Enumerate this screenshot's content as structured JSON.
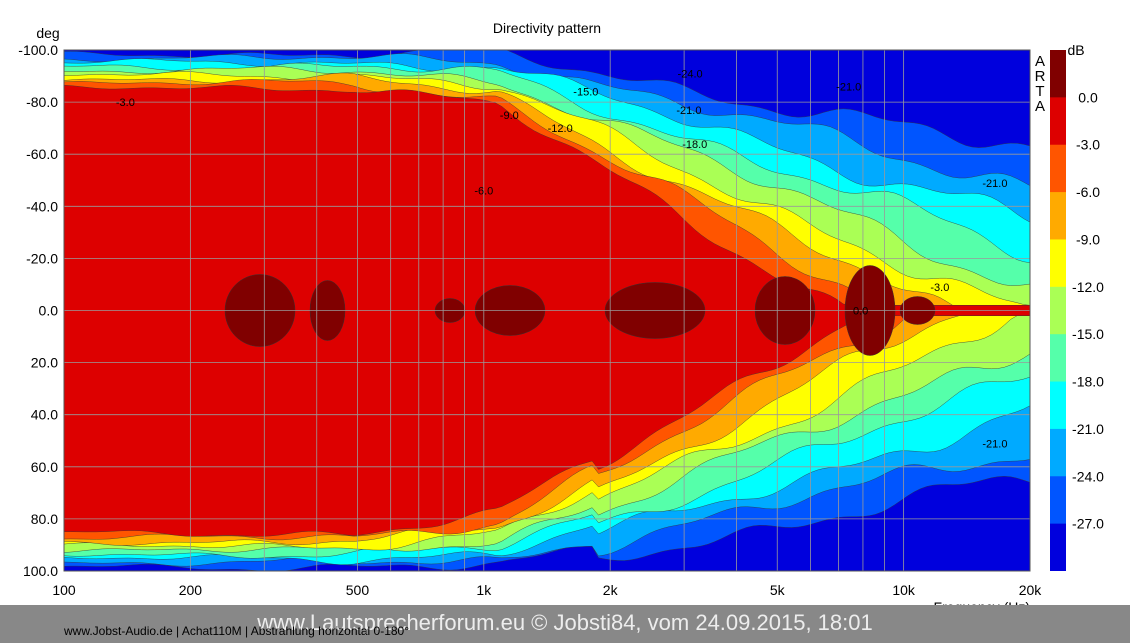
{
  "chart_data": {
    "type": "heatmap",
    "title": "Directivity pattern",
    "ylabel": "deg",
    "xlabel": "Frequency (Hz)",
    "colorbar_label": "dB",
    "brand": "ARTA",
    "x_scale": "log",
    "xlim": [
      100,
      20000
    ],
    "ylim": [
      -100,
      100
    ],
    "x_ticks": [
      {
        "value": 100,
        "label": "100"
      },
      {
        "value": 200,
        "label": "200"
      },
      {
        "value": 500,
        "label": "500"
      },
      {
        "value": 1000,
        "label": "1k"
      },
      {
        "value": 2000,
        "label": "2k"
      },
      {
        "value": 5000,
        "label": "5k"
      },
      {
        "value": 10000,
        "label": "10k"
      },
      {
        "value": 20000,
        "label": "20k"
      }
    ],
    "y_ticks": [
      {
        "value": -100,
        "label": "-100.0"
      },
      {
        "value": -80,
        "label": "-80.0"
      },
      {
        "value": -60,
        "label": "-60.0"
      },
      {
        "value": -40,
        "label": "-40.0"
      },
      {
        "value": -20,
        "label": "-20.0"
      },
      {
        "value": 0,
        "label": "0.0"
      },
      {
        "value": 20,
        "label": "20.0"
      },
      {
        "value": 40,
        "label": "40.0"
      },
      {
        "value": 60,
        "label": "60.0"
      },
      {
        "value": 80,
        "label": "80.0"
      },
      {
        "value": 100,
        "label": "100.0"
      }
    ],
    "color_levels": [
      {
        "label": "0.0",
        "color": "#800000"
      },
      {
        "label": "-3.0",
        "color": "#dd0000"
      },
      {
        "label": "-6.0",
        "color": "#ff5500"
      },
      {
        "label": "-9.0",
        "color": "#ffaa00"
      },
      {
        "label": "-12.0",
        "color": "#ffff00"
      },
      {
        "label": "-15.0",
        "color": "#aaff55"
      },
      {
        "label": "-18.0",
        "color": "#55ffaa"
      },
      {
        "label": "-21.0",
        "color": "#00ffff"
      },
      {
        "label": "-24.0",
        "color": "#00aaff"
      },
      {
        "label": "-27.0",
        "color": "#0055ff"
      }
    ],
    "colorbar_bottom_color": "#0000dd",
    "colorbar_bottom_label": "-27.0",
    "contour_labels": [
      {
        "text": "-3.0",
        "freq": 140,
        "deg": -80
      },
      {
        "text": "-9.0",
        "freq": 1150,
        "deg": -75
      },
      {
        "text": "-15.0",
        "freq": 1750,
        "deg": -84
      },
      {
        "text": "-12.0",
        "freq": 1520,
        "deg": -70
      },
      {
        "text": "-24.0",
        "freq": 3100,
        "deg": -91
      },
      {
        "text": "-21.0",
        "freq": 3080,
        "deg": -77
      },
      {
        "text": "-18.0",
        "freq": 3180,
        "deg": -64
      },
      {
        "text": "-6.0",
        "freq": 1000,
        "deg": -46
      },
      {
        "text": "-21.0",
        "freq": 7400,
        "deg": -86
      },
      {
        "text": "-21.0",
        "freq": 16500,
        "deg": -49
      },
      {
        "text": "-3.0",
        "freq": 12200,
        "deg": -9
      },
      {
        "text": "0.0",
        "freq": 7900,
        "deg": 0
      },
      {
        "text": "-21.0",
        "freq": 16500,
        "deg": 51
      }
    ]
  },
  "footer": {
    "left_text": "www.Jobst-Audio.de | Achat110M | Abstrahlung horizontal 0-180°",
    "watermark": "www.Lautsprecherforum.eu © Jobsti84, vom 24.09.2015, 18:01"
  }
}
